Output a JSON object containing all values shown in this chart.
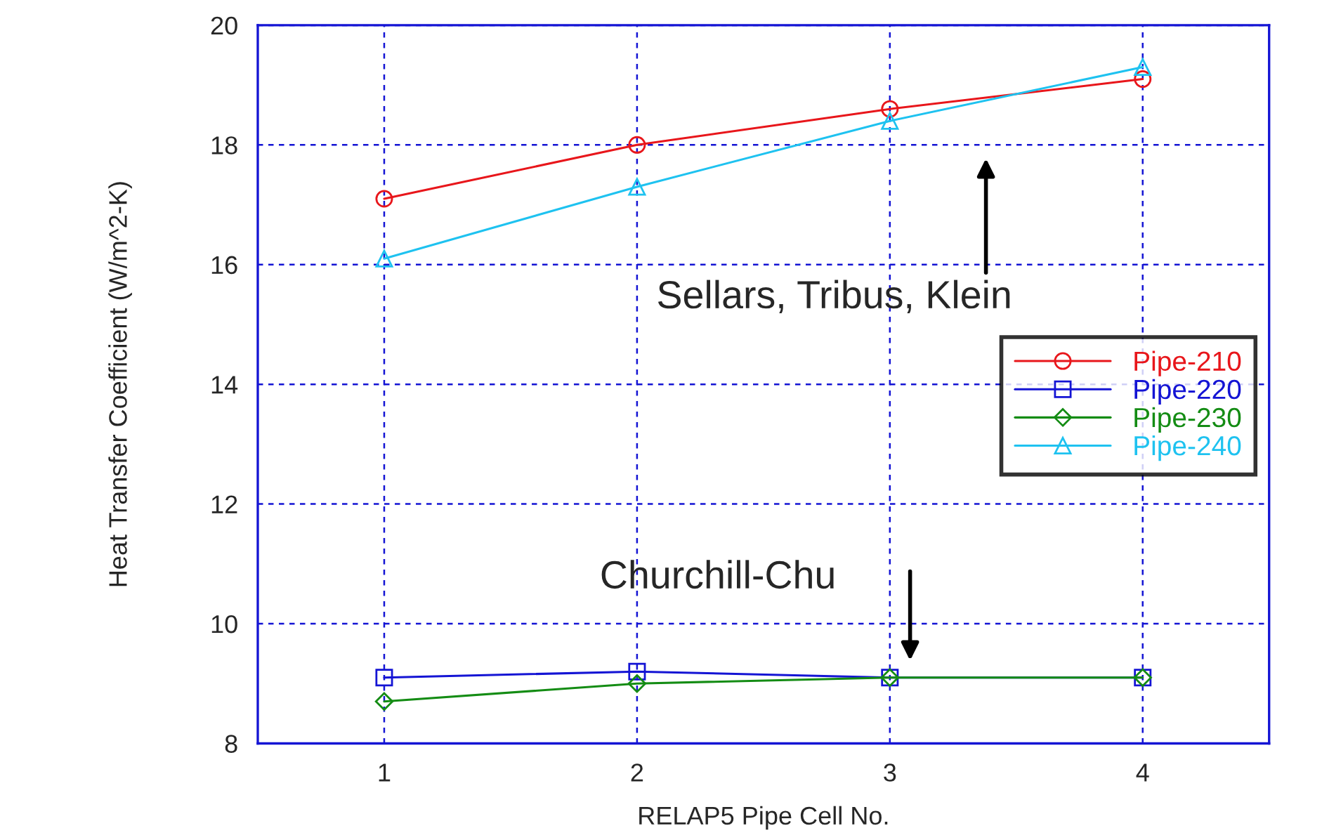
{
  "chart_data": {
    "type": "line",
    "xlabel": "RELAP5 Pipe Cell No.",
    "ylabel": "Heat Transfer Coefficient (W/m^2-K)",
    "x": [
      1,
      2,
      3,
      4
    ],
    "xlim": [
      0.5,
      4.5
    ],
    "xticks": [
      1,
      2,
      3,
      4
    ],
    "ylim": [
      8,
      20
    ],
    "yticks": [
      8,
      10,
      12,
      14,
      16,
      18,
      20
    ],
    "grid": true,
    "legend": "right",
    "line_style": "solid",
    "series": [
      {
        "name": "Pipe-210",
        "color": "#e8161b",
        "marker": "circle",
        "values": [
          17.1,
          18.0,
          18.6,
          19.1
        ]
      },
      {
        "name": "Pipe-220",
        "color": "#1414d4",
        "marker": "square",
        "values": [
          9.1,
          9.2,
          9.1,
          9.1
        ]
      },
      {
        "name": "Pipe-230",
        "color": "#148c14",
        "marker": "diamond",
        "values": [
          8.7,
          9.0,
          9.1,
          9.1
        ]
      },
      {
        "name": "Pipe-240",
        "color": "#1ec2f0",
        "marker": "triangle",
        "values": [
          16.1,
          17.3,
          18.4,
          19.3
        ]
      }
    ],
    "annotations": [
      "Sellars, Tribus, Klein",
      "Churchill-Chu"
    ]
  }
}
